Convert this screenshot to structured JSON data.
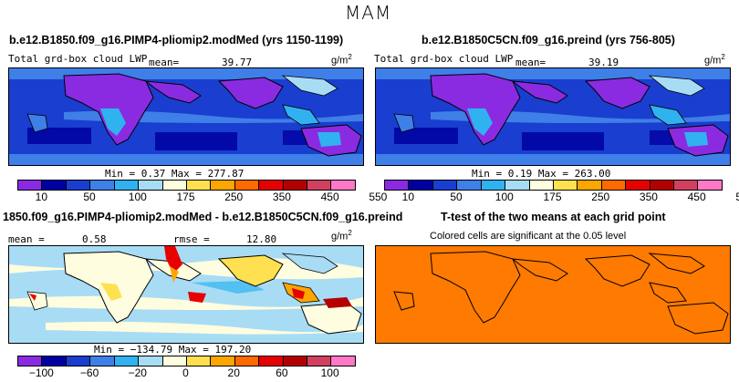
{
  "figure_title": "MAM",
  "panels": {
    "top_left": {
      "case_title": "b.e12.B1850.f09_g16.PIMP4-pliomip2.modMed (yrs 1150-1199)",
      "variable": "Total grd-box cloud LWP",
      "mean_label": "mean=",
      "mean_value": "39.77",
      "units": "g/m",
      "units_exp": "2",
      "minmax": "Min =     0.37  Max = 277.87"
    },
    "top_right": {
      "case_title": "b.e12.B1850C5CN.f09_g16.preind (yrs 756-805)",
      "variable": "Total grd-box cloud LWP",
      "mean_label": "mean=",
      "mean_value": "39.19",
      "units": "g/m",
      "units_exp": "2",
      "minmax": "Min =     0.19  Max = 263.00"
    },
    "bottom_left": {
      "case_title": "1850.f09_g16.PIMP4-pliomip2.modMed - b.e12.B1850C5CN.f09_g16.preind",
      "mean_label": "mean =",
      "mean_value": "0.58",
      "rmse_label": "rmse =",
      "rmse_value": "12.80",
      "units": "g/m",
      "units_exp": "2",
      "minmax": "Min = −134.79  Max = 197.20"
    },
    "bottom_right": {
      "case_title": "T-test of the two means at each grid point",
      "subtitle": "Colored cells are significant at the 0.05 level"
    }
  },
  "colorbar_abs": {
    "colors": [
      "#8a2be2",
      "#0000a0",
      "#1a3ecf",
      "#3f7fe8",
      "#30b2f0",
      "#a8dcf5",
      "#fffde0",
      "#ffe050",
      "#ffa500",
      "#ff6a00",
      "#e60000",
      "#b40000",
      "#d24060",
      "#ff78c8"
    ],
    "ticks": [
      "10",
      "50",
      "100",
      "175",
      "250",
      "350",
      "450",
      "550"
    ]
  },
  "colorbar_diff": {
    "colors": [
      "#8a2be2",
      "#0000a0",
      "#1a3ecf",
      "#3f7fe8",
      "#30b2f0",
      "#a8dcf5",
      "#fffde0",
      "#ffe050",
      "#ffa500",
      "#ff6a00",
      "#e60000",
      "#b40000",
      "#d24060",
      "#ff78c8"
    ],
    "ticks": [
      "−100",
      "−60",
      "−20",
      "0",
      "20",
      "60",
      "100"
    ]
  },
  "colors": {
    "lwp_ocean": "#1a3ecf",
    "lwp_dark": "#0000a0",
    "lwp_purple": "#8a2be2",
    "diff_bg": "#a8dcf5",
    "ttest_fill": "#ff7a00"
  }
}
